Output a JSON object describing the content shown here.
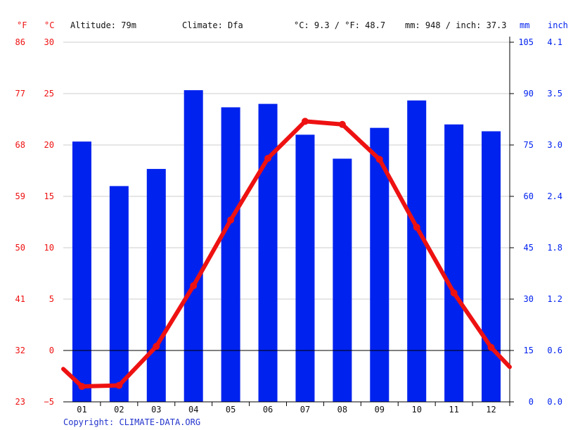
{
  "header": {
    "unit_f": "°F",
    "unit_c": "°C",
    "altitude": "Altitude: 79m",
    "climate": "Climate: Dfa",
    "temp_avg": "°C: 9.3 / °F: 48.7",
    "precip_total": "mm: 948 / inch: 37.3",
    "unit_mm": "mm",
    "unit_inch": "inch"
  },
  "footer": {
    "copyright": "Copyright: CLIMATE-DATA.ORG"
  },
  "colors": {
    "temperature": "#ee1111",
    "precipitation": "#0022ee",
    "grid": "#cccccc",
    "zero_line": "#000000",
    "axis": "#000000"
  },
  "chart_data": {
    "type": "bar",
    "categories": [
      "01",
      "02",
      "03",
      "04",
      "05",
      "06",
      "07",
      "08",
      "09",
      "10",
      "11",
      "12"
    ],
    "series": [
      {
        "kind": "bar",
        "axis": "right",
        "values": [
          76,
          63,
          68,
          91,
          86,
          87,
          78,
          71,
          80,
          88,
          81,
          79
        ]
      },
      {
        "kind": "line",
        "axis": "left",
        "values": [
          -3.5,
          -3.4,
          0.4,
          6.3,
          12.7,
          18.7,
          22.3,
          22.0,
          18.6,
          12.0,
          5.6,
          0.3
        ]
      }
    ],
    "temperature_axis": {
      "unit": "°C",
      "ylim": [
        -5,
        30
      ],
      "ticks_c": [
        "30",
        "25",
        "20",
        "15",
        "10",
        "5",
        "0",
        "−5"
      ],
      "ticks_f": [
        "86",
        "77",
        "68",
        "59",
        "50",
        "41",
        "32",
        "23"
      ]
    },
    "precipitation_axis": {
      "unit": "mm",
      "ylim": [
        0,
        105
      ],
      "ticks_mm": [
        "105",
        "90",
        "75",
        "60",
        "45",
        "30",
        "15",
        "0"
      ],
      "ticks_inch": [
        "4.1",
        "3.5",
        "3.0",
        "2.4",
        "1.8",
        "1.2",
        "0.6",
        "0.0"
      ]
    },
    "left_edge_temp": -1.8,
    "right_edge_temp": -1.6,
    "grid": true
  }
}
